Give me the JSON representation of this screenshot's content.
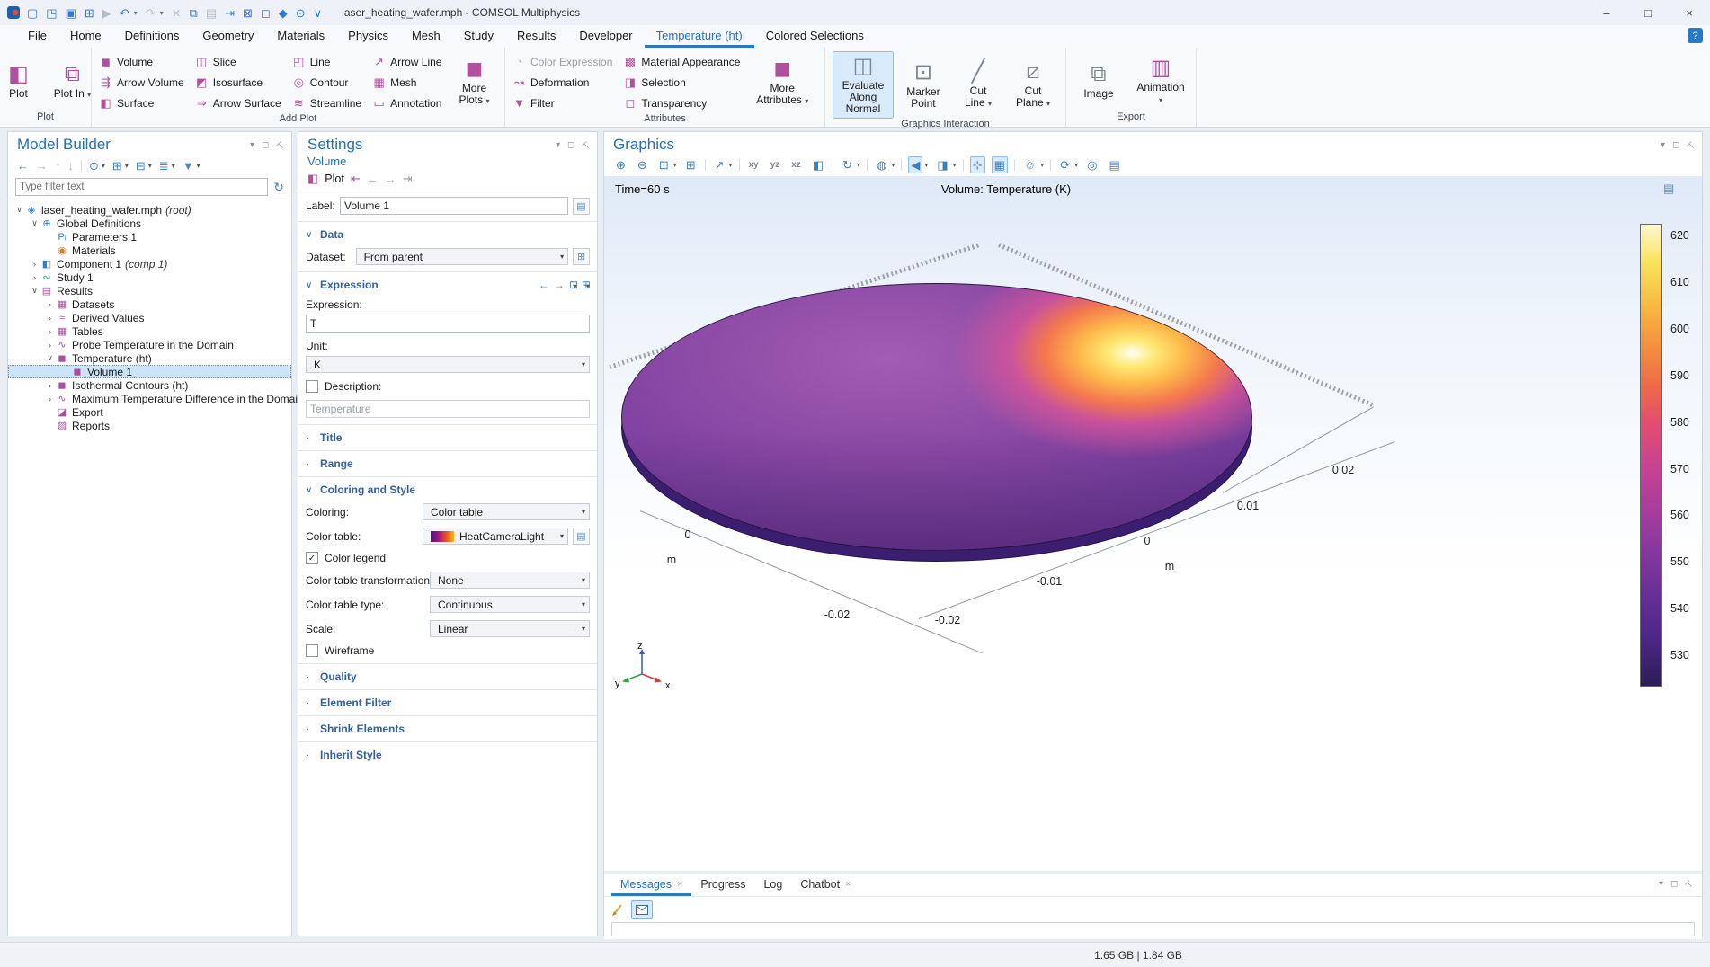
{
  "titlebar": {
    "title": "laser_heating_wafer.mph - COMSOL Multiphysics",
    "quick_access": [
      {
        "name": "new-file-icon",
        "glyph": "▢"
      },
      {
        "name": "open-icon",
        "glyph": "◳"
      },
      {
        "name": "save-icon",
        "glyph": "▣"
      },
      {
        "name": "save-as-icon",
        "glyph": "⊞"
      },
      {
        "name": "run-icon",
        "glyph": "▶",
        "disabled": true
      },
      {
        "name": "undo-icon",
        "glyph": "↶",
        "dd": true
      },
      {
        "name": "redo-icon",
        "glyph": "↷",
        "disabled": true,
        "dd": true
      },
      {
        "name": "cut-icon",
        "glyph": "⨯",
        "disabled": true
      },
      {
        "name": "copy-icon",
        "glyph": "⧉"
      },
      {
        "name": "paste-icon",
        "glyph": "▤",
        "disabled": true
      },
      {
        "name": "import-icon",
        "glyph": "⇥"
      },
      {
        "name": "delete-icon",
        "glyph": "⊠"
      },
      {
        "name": "select-box-icon",
        "glyph": "◻"
      },
      {
        "name": "pick-icon",
        "glyph": "◆"
      },
      {
        "name": "zoom-select-icon",
        "glyph": "⊙"
      },
      {
        "name": "customize-toolbar-icon",
        "glyph": "∨"
      }
    ],
    "window_buttons": {
      "minimize": "–",
      "maximize": "□",
      "close": "×"
    }
  },
  "menu": {
    "active_index": 10,
    "tabs": [
      {
        "label": "File"
      },
      {
        "label": "Home"
      },
      {
        "label": "Definitions"
      },
      {
        "label": "Geometry"
      },
      {
        "label": "Materials"
      },
      {
        "label": "Physics"
      },
      {
        "label": "Mesh"
      },
      {
        "label": "Study"
      },
      {
        "label": "Results"
      },
      {
        "label": "Developer"
      },
      {
        "label": "Temperature (ht)"
      },
      {
        "label": "Colored Selections"
      }
    ],
    "help_glyph": "?"
  },
  "ribbon": {
    "plot_group": {
      "label": "Plot",
      "plot": "Plot",
      "plot_in": "Plot In"
    },
    "add_plot_group": {
      "label": "Add Plot",
      "more": "More Plots",
      "items": [
        {
          "name": "volume-button",
          "glyph": "◼",
          "label": "Volume"
        },
        {
          "name": "arrow-volume-button",
          "glyph": "⇶",
          "label": "Arrow Volume"
        },
        {
          "name": "surface-button",
          "glyph": "◧",
          "label": "Surface"
        },
        {
          "name": "slice-button",
          "glyph": "◫",
          "label": "Slice"
        },
        {
          "name": "isosurface-button",
          "glyph": "◩",
          "label": "Isosurface"
        },
        {
          "name": "arrow-surface-button",
          "glyph": "⇒",
          "label": "Arrow Surface"
        },
        {
          "name": "line-button",
          "glyph": "◰",
          "label": "Line"
        },
        {
          "name": "contour-button",
          "glyph": "◎",
          "label": "Contour"
        },
        {
          "name": "streamline-button",
          "glyph": "≋",
          "label": "Streamline"
        },
        {
          "name": "arrow-line-button",
          "glyph": "↗",
          "label": "Arrow Line"
        },
        {
          "name": "mesh-button",
          "glyph": "▦",
          "label": "Mesh"
        },
        {
          "name": "annotation-button",
          "glyph": "▭",
          "label": "Annotation"
        }
      ]
    },
    "attributes_group": {
      "label": "Attributes",
      "more": "More Attributes",
      "items": [
        {
          "name": "color-expression-button",
          "glyph": "◔",
          "label": "Color Expression",
          "disabled": true
        },
        {
          "name": "deformation-button",
          "glyph": "↝",
          "label": "Deformation"
        },
        {
          "name": "filter-button",
          "glyph": "▼",
          "label": "Filter"
        },
        {
          "name": "material-appearance-button",
          "glyph": "▩",
          "label": "Material Appearance"
        },
        {
          "name": "selection-button",
          "glyph": "◨",
          "label": "Selection"
        },
        {
          "name": "transparency-button",
          "glyph": "◻",
          "label": "Transparency"
        }
      ]
    },
    "graphics_interaction_group": {
      "label": "Graphics Interaction",
      "evaluate": "Evaluate Along Normal",
      "marker": "Marker Point",
      "cut_line": "Cut Line",
      "cut_plane": "Cut Plane"
    },
    "export_group": {
      "label": "Export",
      "image": "Image",
      "animation": "Animation"
    }
  },
  "model_builder": {
    "title": "Model Builder",
    "filter_placeholder": "Type filter text",
    "toolbar": [
      {
        "name": "back-icon",
        "glyph": "←"
      },
      {
        "name": "forward-icon",
        "glyph": "→",
        "disabled": true
      },
      {
        "name": "move-up-icon",
        "glyph": "↑",
        "disabled": true
      },
      {
        "name": "move-down-icon",
        "glyph": "↓",
        "disabled": true
      },
      {
        "sep": true
      },
      {
        "name": "show-icon",
        "glyph": "⊙",
        "dd": true
      },
      {
        "name": "expand-all-icon",
        "glyph": "⊞",
        "dd": true
      },
      {
        "name": "collapse-all-icon",
        "glyph": "⊟",
        "dd": true
      },
      {
        "name": "node-text-icon",
        "glyph": "≣",
        "dd": true
      },
      {
        "name": "model-tree-filter-icon",
        "glyph": "▼",
        "dd": true
      }
    ],
    "tree": [
      {
        "name": "node-root",
        "icon": "model-root-icon",
        "glyph": "◈",
        "color": "#2e7dd1",
        "label": "laser_heating_wafer.mph",
        "suffix": "(root)",
        "level": 0,
        "expander": "expanded"
      },
      {
        "name": "node-global-definitions",
        "icon": "globe-icon",
        "glyph": "⊕",
        "color": "#2e7dd1",
        "label": "Global Definitions",
        "level": 1,
        "expander": "expanded"
      },
      {
        "name": "node-parameters",
        "icon": "parameters-icon",
        "glyph": "Pᵢ",
        "color": "#2e7dd1",
        "label": "Parameters 1",
        "level": 2,
        "expander": "none"
      },
      {
        "name": "node-materials",
        "icon": "materials-icon",
        "glyph": "◉",
        "color": "#d9822b",
        "label": "Materials",
        "level": 2,
        "expander": "none"
      },
      {
        "name": "node-component",
        "icon": "component-icon",
        "glyph": "◧",
        "color": "#2e7dd1",
        "label": "Component 1",
        "suffix": "(comp 1)",
        "level": 1,
        "expander": "collapsed"
      },
      {
        "name": "node-study",
        "icon": "study-icon",
        "glyph": "∾",
        "color": "#159aa8",
        "label": "Study 1",
        "level": 1,
        "expander": "collapsed"
      },
      {
        "name": "node-results",
        "icon": "results-icon",
        "glyph": "▤",
        "color": "#ab4fa0",
        "label": "Results",
        "level": 1,
        "expander": "expanded"
      },
      {
        "name": "node-datasets",
        "icon": "datasets-icon",
        "glyph": "▦",
        "color": "#ab4fa0",
        "label": "Datasets",
        "level": 2,
        "expander": "collapsed"
      },
      {
        "name": "node-derived-values",
        "icon": "derived-values-icon",
        "glyph": "≈",
        "color": "#ab4fa0",
        "label": "Derived Values",
        "level": 2,
        "expander": "collapsed"
      },
      {
        "name": "node-tables",
        "icon": "tables-icon",
        "glyph": "▦",
        "color": "#ab4fa0",
        "label": "Tables",
        "level": 2,
        "expander": "collapsed"
      },
      {
        "name": "node-probe-temperature",
        "icon": "probe-plot-icon",
        "glyph": "∿",
        "color": "#ab4fa0",
        "label": "Probe Temperature in the Domain",
        "level": 2,
        "expander": "collapsed"
      },
      {
        "name": "node-temperature-ht",
        "icon": "plot-group-3d-icon",
        "glyph": "◼",
        "color": "#ab4fa0",
        "label": "Temperature (ht)",
        "level": 2,
        "expander": "expanded"
      },
      {
        "name": "node-volume-1",
        "icon": "volume-plot-icon",
        "glyph": "◼",
        "color": "#ab4fa0",
        "label": "Volume 1",
        "level": 3,
        "expander": "none",
        "selected": true
      },
      {
        "name": "node-isothermal-contours",
        "icon": "plot-group-3d-icon",
        "glyph": "◼",
        "color": "#ab4fa0",
        "label": "Isothermal Contours (ht)",
        "level": 2,
        "expander": "collapsed"
      },
      {
        "name": "node-max-temp-difference",
        "icon": "plot-1d-icon",
        "glyph": "∿",
        "color": "#ab4fa0",
        "label": "Maximum Temperature Difference in the Domain",
        "level": 2,
        "expander": "collapsed"
      },
      {
        "name": "node-export",
        "icon": "export-icon",
        "glyph": "◪",
        "color": "#ab4fa0",
        "label": "Export",
        "level": 2,
        "expander": "none"
      },
      {
        "name": "node-reports",
        "icon": "reports-icon",
        "glyph": "▨",
        "color": "#ab4fa0",
        "label": "Reports",
        "level": 2,
        "expander": "none"
      }
    ]
  },
  "settings": {
    "title": "Settings",
    "subtitle": "Volume",
    "plot_toolbar": {
      "plot_label": "Plot"
    },
    "label_row": {
      "label": "Label:",
      "value": "Volume 1"
    },
    "data_section": {
      "title": "Data",
      "dataset_label": "Dataset:",
      "dataset_value": "From parent"
    },
    "expression_section": {
      "title": "Expression",
      "expr_label": "Expression:",
      "expr_value": "T",
      "unit_label": "Unit:",
      "unit_value": "K",
      "desc_label": "Description:",
      "desc_value": "Temperature"
    },
    "title_section": "Title",
    "range_section": "Range",
    "coloring_section": {
      "title": "Coloring and Style",
      "coloring_label": "Coloring:",
      "coloring_value": "Color table",
      "table_label": "Color table:",
      "table_value": "HeatCameraLight",
      "legend_label": "Color legend",
      "transform_label": "Color table transformation:",
      "transform_value": "None",
      "type_label": "Color table type:",
      "type_value": "Continuous",
      "scale_label": "Scale:",
      "scale_value": "Linear",
      "wireframe_label": "Wireframe"
    },
    "collapsed_sections": [
      "Quality",
      "Element Filter",
      "Shrink Elements",
      "Inherit Style"
    ]
  },
  "graphics": {
    "title": "Graphics",
    "toolbar": [
      {
        "name": "zoom-in-icon",
        "glyph": "⊕"
      },
      {
        "name": "zoom-out-icon",
        "glyph": "⊖"
      },
      {
        "name": "zoom-box-icon",
        "glyph": "⊡",
        "dd": true
      },
      {
        "name": "zoom-extents-icon",
        "glyph": "⊞"
      },
      {
        "sep": true
      },
      {
        "name": "go-to-default-view-icon",
        "glyph": "↗",
        "dd": true
      },
      {
        "sep": true
      },
      {
        "name": "view-xy-icon",
        "glyph": "xy",
        "mini": true
      },
      {
        "name": "view-yz-icon",
        "glyph": "yz",
        "mini": true
      },
      {
        "name": "view-xz-icon",
        "glyph": "xz",
        "mini": true
      },
      {
        "name": "orthographic-projection-icon",
        "glyph": "◧"
      },
      {
        "sep": true
      },
      {
        "name": "rotate-icon",
        "glyph": "↻",
        "dd": true
      },
      {
        "sep": true
      },
      {
        "name": "scene-light-icon",
        "glyph": "◍",
        "dd": true
      },
      {
        "sep": true
      },
      {
        "name": "sound-icon",
        "glyph": "◀",
        "dd": true,
        "active": true
      },
      {
        "name": "view-options-icon",
        "glyph": "◨",
        "dd": true
      },
      {
        "sep": true
      },
      {
        "name": "show-axis-icon",
        "glyph": "⊹",
        "active": true
      },
      {
        "name": "show-grid-icon",
        "glyph": "▦",
        "active": true
      },
      {
        "sep": true
      },
      {
        "name": "select-settings-icon",
        "glyph": "☺",
        "dd": true
      },
      {
        "sep": true
      },
      {
        "name": "update-icon",
        "glyph": "⟳",
        "dd": true
      },
      {
        "name": "snapshot-icon",
        "glyph": "◎"
      },
      {
        "name": "print-icon",
        "glyph": "▤"
      }
    ],
    "time_label": "Time=60 s",
    "plot_title": "Volume: Temperature (K)",
    "colorbar": {
      "ticks": [
        "620",
        "610",
        "600",
        "590",
        "580",
        "570",
        "560",
        "550",
        "540",
        "530"
      ]
    },
    "axes": {
      "right_axis": [
        "0.02",
        "0.01",
        "0",
        "-0.01",
        "-0.02"
      ],
      "left_axis_zero": "0",
      "left_axis_neg": "-0.02",
      "unit_left": "m",
      "unit_right": "m"
    },
    "triad": {
      "x": "x",
      "y": "y",
      "z": "z"
    }
  },
  "messages": {
    "tabs": [
      {
        "name": "tab-messages",
        "label": "Messages",
        "closable": true,
        "active": true
      },
      {
        "name": "tab-progress",
        "label": "Progress"
      },
      {
        "name": "tab-log",
        "label": "Log"
      },
      {
        "name": "tab-chatbot",
        "label": "Chatbot",
        "closable": true
      }
    ]
  },
  "statusbar": {
    "memory": "1.65 GB | 1.84 GB"
  }
}
